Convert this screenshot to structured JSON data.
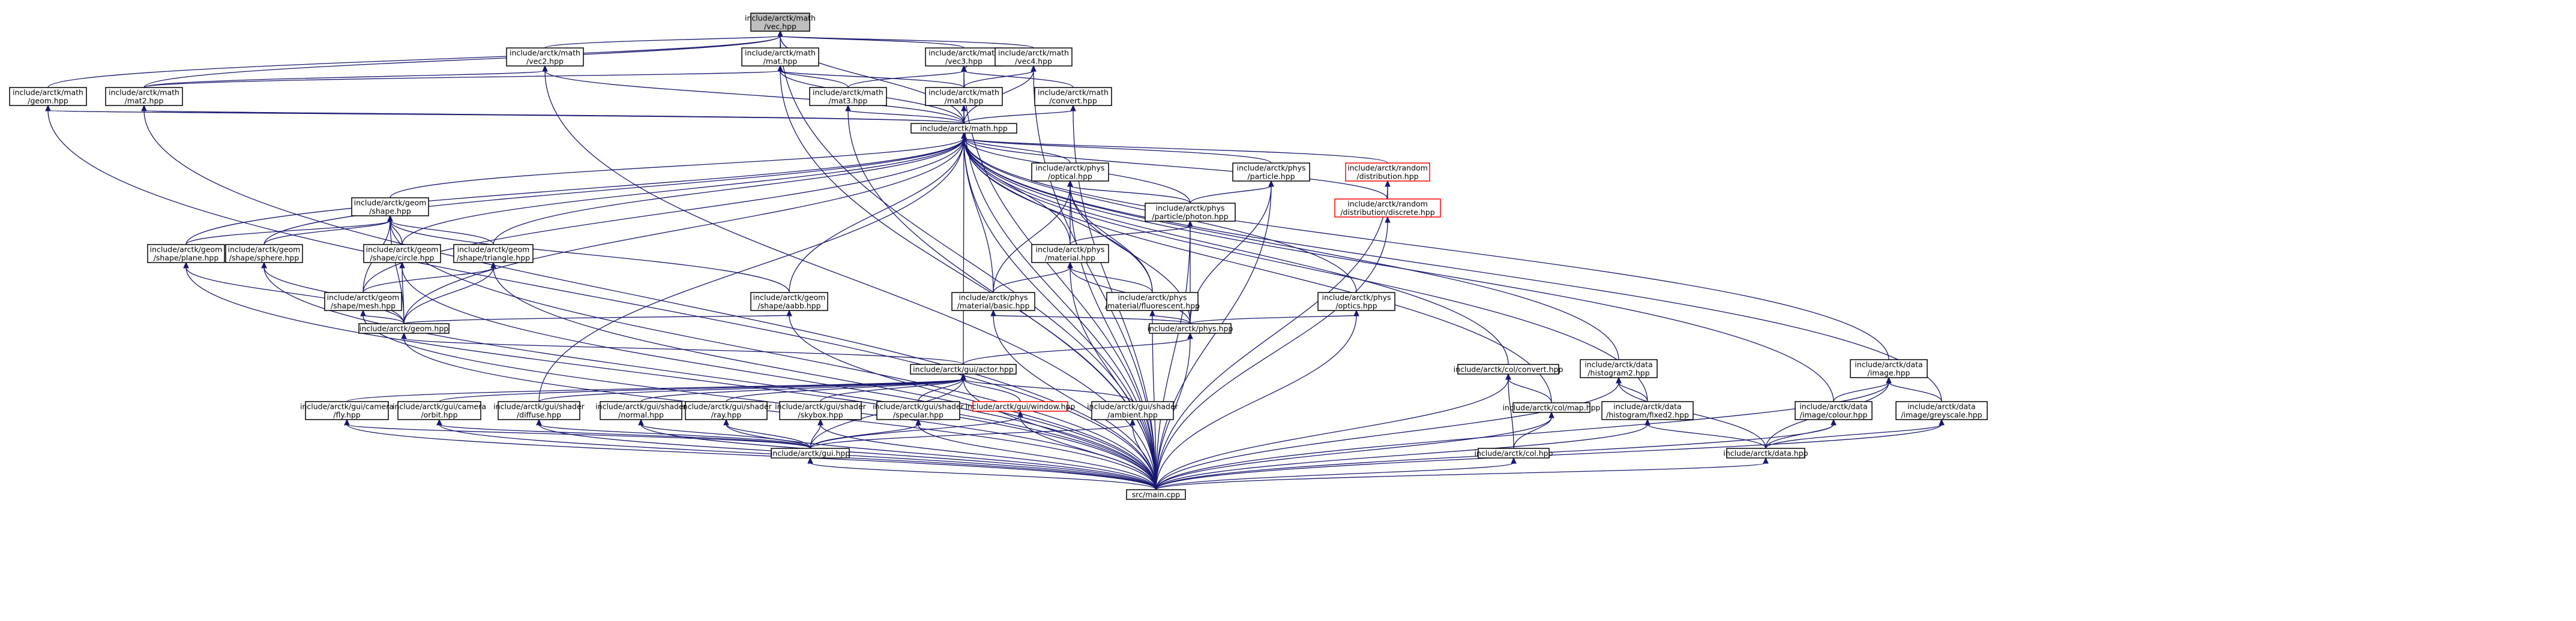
{
  "colors": {
    "edge": "#191970",
    "node_border": "#000000",
    "highlight_fill": "#bfbfbf",
    "missing_border": "#ff0000"
  },
  "nodes": [
    {
      "id": "vec",
      "lines": [
        "include/arctk/math",
        "/vec.hpp"
      ],
      "style": "highlight"
    },
    {
      "id": "vec2",
      "lines": [
        "include/arctk/math",
        "/vec2.hpp"
      ]
    },
    {
      "id": "mat",
      "lines": [
        "include/arctk/math",
        "/mat.hpp"
      ]
    },
    {
      "id": "vec3",
      "lines": [
        "include/arctk/math",
        "/vec3.hpp"
      ]
    },
    {
      "id": "vec4",
      "lines": [
        "include/arctk/math",
        "/vec4.hpp"
      ]
    },
    {
      "id": "geom_m",
      "lines": [
        "include/arctk/math",
        "/geom.hpp"
      ]
    },
    {
      "id": "mat2",
      "lines": [
        "include/arctk/math",
        "/mat2.hpp"
      ]
    },
    {
      "id": "mat3",
      "lines": [
        "include/arctk/math",
        "/mat3.hpp"
      ]
    },
    {
      "id": "mat4",
      "lines": [
        "include/arctk/math",
        "/mat4.hpp"
      ]
    },
    {
      "id": "convert",
      "lines": [
        "include/arctk/math",
        "/convert.hpp"
      ]
    },
    {
      "id": "math",
      "lines": [
        "include/arctk/math.hpp"
      ]
    },
    {
      "id": "shape",
      "lines": [
        "include/arctk/geom",
        "/shape.hpp"
      ]
    },
    {
      "id": "optical",
      "lines": [
        "include/arctk/phys",
        "/optical.hpp"
      ]
    },
    {
      "id": "particle",
      "lines": [
        "include/arctk/phys",
        "/particle.hpp"
      ]
    },
    {
      "id": "distribution",
      "lines": [
        "include/arctk/random",
        "/distribution.hpp"
      ],
      "style": "red"
    },
    {
      "id": "discrete",
      "lines": [
        "include/arctk/random",
        "/distribution/discrete.hpp"
      ],
      "style": "red"
    },
    {
      "id": "photon",
      "lines": [
        "include/arctk/phys",
        "/particle/photon.hpp"
      ]
    },
    {
      "id": "plane",
      "lines": [
        "include/arctk/geom",
        "/shape/plane.hpp"
      ]
    },
    {
      "id": "sphere",
      "lines": [
        "include/arctk/geom",
        "/shape/sphere.hpp"
      ]
    },
    {
      "id": "circle",
      "lines": [
        "include/arctk/geom",
        "/shape/circle.hpp"
      ]
    },
    {
      "id": "triangle",
      "lines": [
        "include/arctk/geom",
        "/shape/triangle.hpp"
      ]
    },
    {
      "id": "material",
      "lines": [
        "include/arctk/phys",
        "/material.hpp"
      ]
    },
    {
      "id": "mesh",
      "lines": [
        "include/arctk/geom",
        "/shape/mesh.hpp"
      ]
    },
    {
      "id": "aabb",
      "lines": [
        "include/arctk/geom",
        "/shape/aabb.hpp"
      ]
    },
    {
      "id": "basic",
      "lines": [
        "include/arctk/phys",
        "/material/basic.hpp"
      ]
    },
    {
      "id": "fluorescent",
      "lines": [
        "include/arctk/phys",
        "/material/fluorescent.hpp"
      ]
    },
    {
      "id": "optics",
      "lines": [
        "include/arctk/phys",
        "/optics.hpp"
      ]
    },
    {
      "id": "geom",
      "lines": [
        "include/arctk/geom.hpp"
      ]
    },
    {
      "id": "phys",
      "lines": [
        "include/arctk/phys.hpp"
      ]
    },
    {
      "id": "actor",
      "lines": [
        "include/arctk/gui/actor.hpp"
      ]
    },
    {
      "id": "colconvert",
      "lines": [
        "include/arctk/col/convert.hpp"
      ]
    },
    {
      "id": "histogram2",
      "lines": [
        "include/arctk/data",
        "/histogram2.hpp"
      ]
    },
    {
      "id": "image",
      "lines": [
        "include/arctk/data",
        "/image.hpp"
      ]
    },
    {
      "id": "fly",
      "lines": [
        "include/arctk/gui/camera",
        "/fly.hpp"
      ]
    },
    {
      "id": "orbit",
      "lines": [
        "include/arctk/gui/camera",
        "/orbit.hpp"
      ]
    },
    {
      "id": "diffuse",
      "lines": [
        "include/arctk/gui/shader",
        "/diffuse.hpp"
      ]
    },
    {
      "id": "normal",
      "lines": [
        "include/arctk/gui/shader",
        "/normal.hpp"
      ]
    },
    {
      "id": "ray",
      "lines": [
        "include/arctk/gui/shader",
        "/ray.hpp"
      ]
    },
    {
      "id": "skybox",
      "lines": [
        "include/arctk/gui/shader",
        "/skybox.hpp"
      ]
    },
    {
      "id": "specular",
      "lines": [
        "include/arctk/gui/shader",
        "/specular.hpp"
      ]
    },
    {
      "id": "window",
      "lines": [
        "include/arctk/gui/window.hpp"
      ],
      "style": "red"
    },
    {
      "id": "ambient",
      "lines": [
        "include/arctk/gui/shader",
        "/ambient.hpp"
      ]
    },
    {
      "id": "colmap",
      "lines": [
        "include/arctk/col/map.hpp"
      ]
    },
    {
      "id": "fixed2",
      "lines": [
        "include/arctk/data",
        "/histogram/fixed2.hpp"
      ]
    },
    {
      "id": "colour",
      "lines": [
        "include/arctk/data",
        "/image/colour.hpp"
      ]
    },
    {
      "id": "greyscale",
      "lines": [
        "include/arctk/data",
        "/image/greyscale.hpp"
      ]
    },
    {
      "id": "gui",
      "lines": [
        "include/arctk/gui.hpp"
      ]
    },
    {
      "id": "col",
      "lines": [
        "include/arctk/col.hpp"
      ]
    },
    {
      "id": "data",
      "lines": [
        "include/arctk/data.hpp"
      ]
    },
    {
      "id": "main",
      "lines": [
        "src/main.cpp"
      ]
    }
  ],
  "edges": [
    [
      "vec",
      "vec2"
    ],
    [
      "vec",
      "mat"
    ],
    [
      "vec",
      "vec3"
    ],
    [
      "vec",
      "vec4"
    ],
    [
      "vec",
      "geom_m"
    ],
    [
      "vec",
      "mat2"
    ],
    [
      "vec",
      "math"
    ],
    [
      "vec",
      "main"
    ],
    [
      "vec2",
      "mat2"
    ],
    [
      "vec2",
      "math"
    ],
    [
      "vec2",
      "main"
    ],
    [
      "mat",
      "mat2"
    ],
    [
      "mat",
      "mat3"
    ],
    [
      "mat",
      "mat4"
    ],
    [
      "mat",
      "math"
    ],
    [
      "mat",
      "main"
    ],
    [
      "vec3",
      "mat3"
    ],
    [
      "vec3",
      "convert"
    ],
    [
      "vec3",
      "vec4"
    ],
    [
      "vec3",
      "math"
    ],
    [
      "vec3",
      "main"
    ],
    [
      "vec4",
      "mat4"
    ],
    [
      "vec4",
      "math"
    ],
    [
      "vec4",
      "main"
    ],
    [
      "geom_m",
      "math"
    ],
    [
      "geom_m",
      "main"
    ],
    [
      "mat2",
      "math"
    ],
    [
      "mat2",
      "main"
    ],
    [
      "mat3",
      "math"
    ],
    [
      "mat3",
      "main"
    ],
    [
      "mat4",
      "math"
    ],
    [
      "mat4",
      "main"
    ],
    [
      "convert",
      "math"
    ],
    [
      "convert",
      "main"
    ],
    [
      "math",
      "shape"
    ],
    [
      "math",
      "optical"
    ],
    [
      "math",
      "particle"
    ],
    [
      "math",
      "distribution"
    ],
    [
      "math",
      "discrete"
    ],
    [
      "math",
      "photon"
    ],
    [
      "math",
      "plane"
    ],
    [
      "math",
      "sphere"
    ],
    [
      "math",
      "circle"
    ],
    [
      "math",
      "triangle"
    ],
    [
      "math",
      "material"
    ],
    [
      "math",
      "mesh"
    ],
    [
      "math",
      "aabb"
    ],
    [
      "math",
      "basic"
    ],
    [
      "math",
      "fluorescent"
    ],
    [
      "math",
      "optics"
    ],
    [
      "math",
      "geom"
    ],
    [
      "math",
      "actor"
    ],
    [
      "math",
      "colconvert"
    ],
    [
      "math",
      "histogram2"
    ],
    [
      "math",
      "image"
    ],
    [
      "math",
      "colmap"
    ],
    [
      "math",
      "fixed2"
    ],
    [
      "math",
      "colour"
    ],
    [
      "math",
      "greyscale"
    ],
    [
      "math",
      "main"
    ],
    [
      "math",
      "diffuse"
    ],
    [
      "shape",
      "plane"
    ],
    [
      "shape",
      "sphere"
    ],
    [
      "shape",
      "circle"
    ],
    [
      "shape",
      "triangle"
    ],
    [
      "shape",
      "mesh"
    ],
    [
      "shape",
      "aabb"
    ],
    [
      "shape",
      "geom"
    ],
    [
      "shape",
      "main"
    ],
    [
      "optical",
      "photon"
    ],
    [
      "optical",
      "material"
    ],
    [
      "optical",
      "basic"
    ],
    [
      "optical",
      "fluorescent"
    ],
    [
      "optical",
      "phys"
    ],
    [
      "optical",
      "main"
    ],
    [
      "particle",
      "photon"
    ],
    [
      "particle",
      "phys"
    ],
    [
      "particle",
      "main"
    ],
    [
      "distribution",
      "discrete"
    ],
    [
      "distribution",
      "main"
    ],
    [
      "discrete",
      "main"
    ],
    [
      "photon",
      "material"
    ],
    [
      "photon",
      "phys"
    ],
    [
      "photon",
      "main"
    ],
    [
      "plane",
      "geom"
    ],
    [
      "plane",
      "main"
    ],
    [
      "sphere",
      "geom"
    ],
    [
      "sphere",
      "main"
    ],
    [
      "circle",
      "geom"
    ],
    [
      "circle",
      "main"
    ],
    [
      "triangle",
      "mesh"
    ],
    [
      "triangle",
      "geom"
    ],
    [
      "triangle",
      "main"
    ],
    [
      "material",
      "basic"
    ],
    [
      "material",
      "fluorescent"
    ],
    [
      "material",
      "phys"
    ],
    [
      "material",
      "main"
    ],
    [
      "mesh",
      "geom"
    ],
    [
      "mesh",
      "main"
    ],
    [
      "aabb",
      "geom"
    ],
    [
      "aabb",
      "main"
    ],
    [
      "basic",
      "phys"
    ],
    [
      "basic",
      "main"
    ],
    [
      "fluorescent",
      "phys"
    ],
    [
      "fluorescent",
      "main"
    ],
    [
      "optics",
      "phys"
    ],
    [
      "optics",
      "main"
    ],
    [
      "geom",
      "actor"
    ],
    [
      "geom",
      "main"
    ],
    [
      "phys",
      "actor"
    ],
    [
      "phys",
      "main"
    ],
    [
      "actor",
      "fly"
    ],
    [
      "actor",
      "orbit"
    ],
    [
      "actor",
      "diffuse"
    ],
    [
      "actor",
      "normal"
    ],
    [
      "actor",
      "ray"
    ],
    [
      "actor",
      "skybox"
    ],
    [
      "actor",
      "specular"
    ],
    [
      "actor",
      "window"
    ],
    [
      "actor",
      "ambient"
    ],
    [
      "actor",
      "gui"
    ],
    [
      "actor",
      "main"
    ],
    [
      "colconvert",
      "colmap"
    ],
    [
      "colconvert",
      "col"
    ],
    [
      "colconvert",
      "main"
    ],
    [
      "histogram2",
      "fixed2"
    ],
    [
      "histogram2",
      "data"
    ],
    [
      "histogram2",
      "main"
    ],
    [
      "image",
      "colour"
    ],
    [
      "image",
      "greyscale"
    ],
    [
      "image",
      "data"
    ],
    [
      "image",
      "main"
    ],
    [
      "fly",
      "gui"
    ],
    [
      "fly",
      "main"
    ],
    [
      "orbit",
      "gui"
    ],
    [
      "orbit",
      "main"
    ],
    [
      "diffuse",
      "gui"
    ],
    [
      "diffuse",
      "main"
    ],
    [
      "normal",
      "gui"
    ],
    [
      "normal",
      "main"
    ],
    [
      "ray",
      "gui"
    ],
    [
      "ray",
      "main"
    ],
    [
      "skybox",
      "gui"
    ],
    [
      "skybox",
      "main"
    ],
    [
      "specular",
      "gui"
    ],
    [
      "specular",
      "main"
    ],
    [
      "window",
      "gui"
    ],
    [
      "window",
      "main"
    ],
    [
      "ambient",
      "gui"
    ],
    [
      "ambient",
      "main"
    ],
    [
      "colmap",
      "col"
    ],
    [
      "colmap",
      "main"
    ],
    [
      "fixed2",
      "data"
    ],
    [
      "fixed2",
      "main"
    ],
    [
      "colour",
      "data"
    ],
    [
      "colour",
      "main"
    ],
    [
      "greyscale",
      "data"
    ],
    [
      "greyscale",
      "main"
    ],
    [
      "gui",
      "main"
    ],
    [
      "col",
      "main"
    ],
    [
      "data",
      "main"
    ]
  ]
}
